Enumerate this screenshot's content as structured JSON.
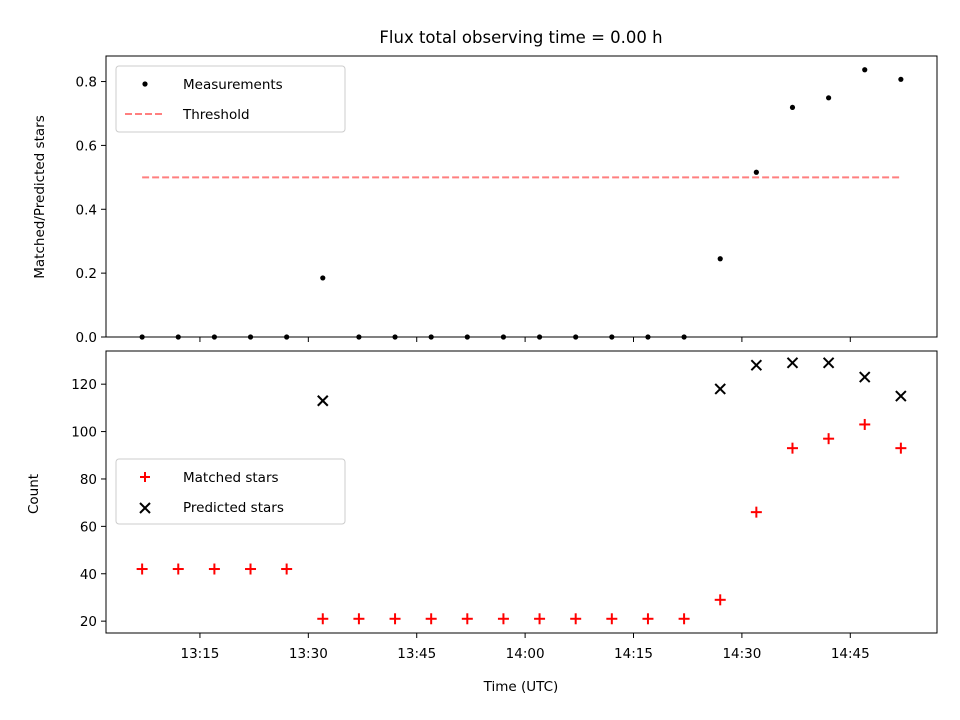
{
  "chart_data": [
    {
      "type": "scatter",
      "title": "Flux total observing time = 0.00 h",
      "xlabel": "",
      "ylabel": "Matched/Predicted stars",
      "ylim": [
        0.0,
        0.88
      ],
      "yticks": [
        "0.0",
        "0.2",
        "0.4",
        "0.6",
        "0.8"
      ],
      "legend_position": "upper-left",
      "series": [
        {
          "name": "Measurements",
          "marker": "dot",
          "color": "#000000",
          "x": [
            "13:07",
            "13:12",
            "13:17",
            "13:22",
            "13:27",
            "13:32",
            "13:37",
            "13:42",
            "13:47",
            "13:52",
            "13:57",
            "14:02",
            "14:07",
            "14:12",
            "14:17",
            "14:22",
            "14:27",
            "14:32",
            "14:37",
            "14:42",
            "14:47",
            "14:52"
          ],
          "y": [
            0.0,
            0.0,
            0.0,
            0.0,
            0.0,
            0.185,
            0.0,
            0.0,
            0.0,
            0.0,
            0.0,
            0.0,
            0.0,
            0.0,
            0.0,
            0.0,
            0.245,
            0.516,
            0.719,
            0.749,
            0.837,
            0.807
          ]
        },
        {
          "name": "Threshold",
          "style": "dashed",
          "color": "#ff7f7f",
          "x": [
            "13:07",
            "14:52"
          ],
          "y": [
            0.5,
            0.5
          ]
        }
      ]
    },
    {
      "type": "scatter",
      "title": "",
      "xlabel": "Time (UTC)",
      "ylabel": "Count",
      "ylim": [
        15,
        134
      ],
      "yticks": [
        "20",
        "40",
        "60",
        "80",
        "100",
        "120"
      ],
      "xticks": [
        "13:15",
        "13:30",
        "13:45",
        "14:00",
        "14:15",
        "14:30",
        "14:45"
      ],
      "legend_position": "center-left",
      "series": [
        {
          "name": "Matched stars",
          "marker": "plus",
          "color": "#ff0000",
          "x": [
            "13:07",
            "13:12",
            "13:17",
            "13:22",
            "13:27",
            "13:32",
            "13:37",
            "13:42",
            "13:47",
            "13:52",
            "13:57",
            "14:02",
            "14:07",
            "14:12",
            "14:17",
            "14:22",
            "14:27",
            "14:32",
            "14:37",
            "14:42",
            "14:47",
            "14:52"
          ],
          "y": [
            42,
            42,
            42,
            42,
            42,
            21,
            21,
            21,
            21,
            21,
            21,
            21,
            21,
            21,
            21,
            21,
            29,
            66,
            93,
            97,
            103,
            93
          ]
        },
        {
          "name": "Predicted stars",
          "marker": "x",
          "color": "#000000",
          "x": [
            "13:32",
            "14:27",
            "14:32",
            "14:37",
            "14:42",
            "14:47",
            "14:52"
          ],
          "y": [
            113,
            118,
            128,
            129,
            129,
            123,
            115
          ]
        }
      ]
    }
  ]
}
